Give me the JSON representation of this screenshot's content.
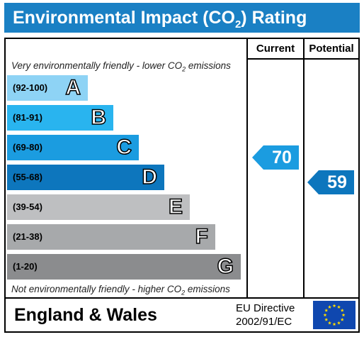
{
  "header": {
    "title_prefix": "Environmental Impact (CO",
    "title_sub": "2",
    "title_suffix": ") Rating"
  },
  "columns": {
    "current": "Current",
    "potential": "Potential"
  },
  "notes": {
    "top_prefix": "Very environmentally friendly - lower CO",
    "top_sub": "2",
    "top_suffix": " emissions",
    "bottom_prefix": "Not environmentally friendly - higher CO",
    "bottom_sub": "2",
    "bottom_suffix": " emissions"
  },
  "bands": [
    {
      "range": "(92-100)",
      "letter": "A",
      "color": "#8ed3f5"
    },
    {
      "range": "(81-91)",
      "letter": "B",
      "color": "#29b4ef"
    },
    {
      "range": "(69-80)",
      "letter": "C",
      "color": "#1b9ce0"
    },
    {
      "range": "(55-68)",
      "letter": "D",
      "color": "#0d76bd"
    },
    {
      "range": "(39-54)",
      "letter": "E",
      "color": "#bebfc1"
    },
    {
      "range": "(21-38)",
      "letter": "F",
      "color": "#a7a9ab"
    },
    {
      "range": "(1-20)",
      "letter": "G",
      "color": "#8b8c8e"
    }
  ],
  "ratings": {
    "current": {
      "value": "70",
      "color": "#1b9ce0"
    },
    "potential": {
      "value": "59",
      "color": "#0d76bd"
    }
  },
  "footer": {
    "region": "England & Wales",
    "directive_line1": "EU Directive",
    "directive_line2": "2002/91/EC"
  },
  "eu_flag": {
    "background": "#0f47af",
    "star_color": "#ffdd00",
    "star_count": 12
  }
}
